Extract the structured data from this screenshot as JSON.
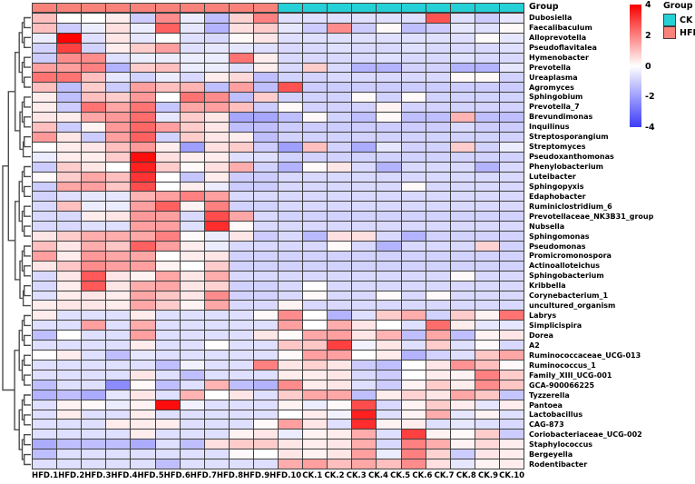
{
  "chart_data": {
    "type": "heatmap",
    "columns": [
      "HFD.1",
      "HFD.2",
      "HFD.3",
      "HFD.4",
      "HFD.5",
      "HFD.6",
      "HFD.7",
      "HFD.8",
      "HFD.9",
      "HFD.10",
      "CK.1",
      "CK.2",
      "CK.3",
      "CK.4",
      "CK.5",
      "CK.6",
      "CK.7",
      "CK.8",
      "CK.9",
      "CK.10"
    ],
    "rows": [
      "Dubosiella",
      "Faecalibaculum",
      "Alloprevotella",
      "Pseudoflavitalea",
      "Hymenobacter",
      "Prevotella",
      "Ureaplasma",
      "Agromyces",
      "Sphingobium",
      "Prevotella_7",
      "Brevundimonas",
      "Inquilinus",
      "Streptosporangium",
      "Streptomyces",
      "Pseudoxanthomonas",
      "Phenylobacterium",
      "Luteibacter",
      "Sphingopyxis",
      "Edaphobacter",
      "Ruminiclostridium_6",
      "Prevotellaceae_NK3B31_group",
      "Nubsella",
      "Sphingomonas",
      "Pseudomonas",
      "Promicromonospora",
      "Actinoalloteichus",
      "Sphingobacterium",
      "Kribbella",
      "Corynebacterium_1",
      "uncultured_organism",
      "Labrys",
      "Simplicispira",
      "Dorea",
      "A2",
      "Ruminococcaceae_UCG-013",
      "Ruminococcus_1",
      "Family_XIII_UCG-001",
      "GCA-900066225",
      "Tyzzerella",
      "Pantoea",
      "Lactobacillus",
      "CAG-873",
      "Coriobacteriaceae_UCG-002",
      "Staphylococcus",
      "Bergeyella",
      "Rodentibacter"
    ],
    "values": [
      [
        1.0,
        0.0,
        0.0,
        0.3,
        -0.8,
        1.8,
        -0.3,
        -1.0,
        0.7,
        2.0,
        -0.5,
        -0.5,
        -0.5,
        -0.5,
        -0.5,
        -0.5,
        2.7,
        -0.5,
        -0.8,
        -0.4
      ],
      [
        1.0,
        -0.8,
        -0.3,
        0.5,
        -0.3,
        2.5,
        -0.4,
        -1.2,
        0.5,
        0.8,
        -0.4,
        -0.8,
        1.8,
        -0.8,
        0.1,
        -1.0,
        -0.8,
        -0.4,
        -0.5,
        0.1
      ],
      [
        -0.3,
        4.0,
        -0.5,
        0.4,
        -0.4,
        0.0,
        -0.5,
        -0.6,
        0.1,
        0.4,
        -0.5,
        -0.5,
        -0.5,
        -0.5,
        -0.5,
        -0.5,
        -0.5,
        -0.5,
        0.1,
        -0.4
      ],
      [
        -0.7,
        3.0,
        -0.7,
        0.3,
        0.8,
        1.5,
        -0.5,
        -0.4,
        -0.4,
        -0.5,
        -0.6,
        -0.6,
        -0.5,
        -0.6,
        -0.6,
        -0.5,
        -0.6,
        -0.6,
        -0.6,
        -0.5
      ],
      [
        -0.8,
        1.8,
        1.8,
        -0.5,
        -0.3,
        -0.3,
        -0.3,
        -0.3,
        2.2,
        0.3,
        -0.6,
        -0.6,
        -0.6,
        -0.6,
        -0.5,
        -0.6,
        -0.6,
        -0.5,
        -0.6,
        -0.6
      ],
      [
        1.5,
        1.5,
        2.0,
        -1.2,
        0.8,
        1.0,
        -0.3,
        -0.3,
        -0.5,
        0.3,
        -0.6,
        0.8,
        -0.6,
        -1.2,
        -1.2,
        -0.7,
        -0.7,
        -1.2,
        -1.2,
        -0.4
      ],
      [
        2.2,
        2.2,
        1.0,
        -0.4,
        -0.7,
        -0.3,
        -0.6,
        0.3,
        0.6,
        -1.0,
        -0.7,
        -0.7,
        -0.6,
        -0.6,
        -0.6,
        -0.6,
        -0.6,
        0.1,
        0.1,
        -0.7
      ],
      [
        1.0,
        -1.0,
        0.8,
        -0.8,
        1.5,
        1.0,
        1.2,
        -1.0,
        1.5,
        -1.0,
        2.7,
        -0.8,
        -0.8,
        -0.8,
        -0.8,
        -0.8,
        -0.8,
        -0.8,
        -0.8,
        -0.8
      ],
      [
        0.3,
        -1.0,
        1.0,
        0.8,
        1.6,
        0.0,
        2.2,
        1.8,
        -1.0,
        0.8,
        -0.7,
        -0.7,
        -0.7,
        0.1,
        -0.7,
        0.1,
        -0.7,
        -0.7,
        -0.7,
        -0.7
      ],
      [
        0.3,
        -0.8,
        2.2,
        1.4,
        2.2,
        -0.9,
        1.4,
        1.5,
        1.0,
        -0.8,
        0.1,
        -0.7,
        -0.7,
        -0.7,
        0.2,
        -0.7,
        -0.7,
        -0.7,
        -0.7,
        -0.7
      ],
      [
        0.4,
        0.3,
        1.4,
        1.6,
        2.3,
        -0.4,
        0.8,
        0.4,
        -1.4,
        -1.4,
        -1.0,
        0.1,
        -0.7,
        -1.0,
        0.1,
        -1.0,
        -1.0,
        1.2,
        -1.0,
        -1.0
      ],
      [
        1.0,
        -0.8,
        0.2,
        1.6,
        2.4,
        1.5,
        0.8,
        0.4,
        -1.0,
        -1.0,
        -0.8,
        -0.8,
        -0.8,
        -0.8,
        -0.8,
        -0.8,
        -0.8,
        -0.6,
        -0.8,
        -0.8
      ],
      [
        1.6,
        0.4,
        -0.8,
        1.5,
        2.5,
        -0.7,
        0.8,
        0.4,
        0.3,
        -1.0,
        -0.7,
        -0.7,
        -0.7,
        -0.7,
        -0.7,
        -0.7,
        -0.7,
        -0.7,
        -0.7,
        -0.7
      ],
      [
        0.0,
        0.3,
        0.4,
        1.0,
        1.6,
        0.3,
        -1.5,
        0.5,
        0.8,
        -0.8,
        -1.5,
        1.0,
        -0.7,
        -1.3,
        -0.4,
        -0.7,
        -0.7,
        0.8,
        -0.7,
        -0.3
      ],
      [
        -0.3,
        0.3,
        0.3,
        0.8,
        3.8,
        0.5,
        0.3,
        0.3,
        -0.5,
        -0.5,
        -0.7,
        -0.7,
        -0.7,
        -0.7,
        -0.7,
        -0.7,
        -0.7,
        -0.7,
        -0.7,
        -0.7
      ],
      [
        -0.8,
        0.8,
        0.4,
        0.0,
        3.5,
        0.8,
        0.1,
        0.5,
        1.3,
        -0.7,
        -1.2,
        0.1,
        0.4,
        -0.6,
        -1.2,
        -0.6,
        -0.6,
        -0.6,
        -1.2,
        -0.6
      ],
      [
        0.1,
        0.8,
        1.4,
        1.0,
        3.2,
        0.0,
        -0.9,
        0.3,
        -0.8,
        -0.8,
        -0.6,
        -0.6,
        -0.6,
        -0.6,
        -0.6,
        -0.6,
        -0.6,
        -0.6,
        -0.6,
        -0.6
      ],
      [
        -0.8,
        1.4,
        1.5,
        0.9,
        2.8,
        0.0,
        0.3,
        -0.3,
        -0.8,
        -0.8,
        -0.6,
        -0.6,
        -0.6,
        -0.6,
        -0.6,
        0.1,
        -0.6,
        -0.6,
        -0.6,
        -0.6
      ],
      [
        -0.7,
        -0.5,
        -0.4,
        -0.4,
        1.2,
        1.5,
        2.0,
        1.5,
        -0.6,
        -0.6,
        -0.6,
        -0.6,
        -0.6,
        -0.6,
        -0.6,
        -0.6,
        -0.6,
        -0.6,
        -0.6,
        -0.6
      ],
      [
        -0.6,
        1.0,
        -0.3,
        -0.3,
        1.5,
        2.5,
        0.2,
        2.0,
        -0.7,
        -0.7,
        -0.6,
        -0.6,
        -0.6,
        -0.6,
        -0.6,
        -0.6,
        -0.6,
        -0.6,
        -0.6,
        -0.6
      ],
      [
        -0.6,
        -0.6,
        0.3,
        0.4,
        1.6,
        1.5,
        -0.6,
        2.8,
        1.4,
        -0.6,
        -0.7,
        -0.7,
        -0.7,
        -0.7,
        -0.7,
        -0.7,
        -0.7,
        -0.7,
        -0.7,
        -0.7
      ],
      [
        -0.6,
        -0.6,
        -0.5,
        -0.5,
        1.5,
        1.5,
        -0.5,
        3.3,
        0.1,
        -0.6,
        -0.6,
        -0.6,
        -0.6,
        -0.6,
        -0.6,
        -0.6,
        -0.6,
        -0.6,
        -0.6,
        -0.6
      ],
      [
        0.4,
        0.8,
        1.3,
        1.3,
        1.4,
        2.0,
        0.1,
        -0.3,
        0.4,
        -0.8,
        -0.6,
        -1.1,
        0.5,
        0.5,
        -0.6,
        -1.2,
        -0.7,
        -0.7,
        -0.7,
        -0.7
      ],
      [
        1.0,
        0.4,
        1.3,
        0.9,
        2.5,
        1.5,
        0.3,
        -0.3,
        -0.6,
        -0.6,
        -0.6,
        -0.6,
        0.1,
        -0.6,
        -1.2,
        -0.6,
        -0.6,
        -0.6,
        0.7,
        -0.7
      ],
      [
        1.5,
        0.3,
        1.6,
        1.4,
        1.4,
        0.0,
        0.3,
        0.4,
        -0.7,
        -0.7,
        -0.7,
        -0.7,
        -0.7,
        -0.7,
        -0.7,
        -0.7,
        -0.7,
        -0.7,
        -0.7,
        -0.7
      ],
      [
        0.4,
        0.9,
        1.8,
        1.5,
        1.5,
        0.2,
        0.0,
        0.8,
        -0.7,
        -0.7,
        -0.7,
        -0.7,
        -0.7,
        -0.7,
        -0.7,
        -0.7,
        -0.7,
        -0.7,
        -0.7,
        -0.7
      ],
      [
        -0.6,
        0.4,
        2.6,
        0.4,
        0.2,
        1.4,
        0.4,
        1.3,
        -0.6,
        -0.6,
        -0.6,
        -0.6,
        -0.6,
        -0.6,
        -0.6,
        -0.6,
        -0.6,
        0.1,
        -0.6,
        -0.6
      ],
      [
        -0.6,
        0.3,
        2.6,
        0.4,
        1.3,
        1.4,
        0.4,
        0.7,
        -0.7,
        -0.7,
        -0.6,
        0.0,
        -0.6,
        -0.6,
        -0.6,
        -0.6,
        -0.6,
        -0.6,
        -0.6,
        -0.6
      ],
      [
        -0.5,
        0.3,
        0.4,
        0.3,
        1.4,
        0.9,
        0.4,
        1.8,
        -0.7,
        -0.7,
        -0.6,
        0.1,
        -0.6,
        -0.6,
        0.1,
        -0.6,
        0.1,
        -0.6,
        -0.6,
        -0.6
      ],
      [
        0.3,
        0.4,
        0.4,
        0.3,
        1.4,
        0.8,
        0.2,
        1.4,
        -0.6,
        -0.6,
        0.2,
        -0.6,
        -0.6,
        -0.6,
        -0.6,
        -0.6,
        -0.6,
        -0.6,
        -0.6,
        -0.6
      ],
      [
        0.3,
        -0.5,
        -0.5,
        -0.5,
        0.3,
        -0.5,
        -0.5,
        -0.5,
        -0.5,
        0.1,
        1.8,
        0.0,
        -1.2,
        -0.5,
        0.8,
        1.3,
        -0.7,
        0.8,
        0.2,
        2.2
      ],
      [
        -0.5,
        -0.5,
        1.5,
        -0.5,
        1.3,
        -0.5,
        -0.5,
        -0.5,
        -0.5,
        -0.5,
        1.5,
        0.0,
        1.3,
        0.4,
        0.0,
        -0.5,
        2.3,
        0.3,
        -0.4,
        -0.4
      ],
      [
        -1.0,
        0.0,
        -0.5,
        -0.5,
        1.5,
        -0.5,
        -0.5,
        -0.5,
        -0.5,
        0.4,
        0.1,
        1.4,
        1.5,
        0.4,
        1.2,
        -1.0,
        1.4,
        -1.0,
        0.2,
        0.4
      ],
      [
        -0.5,
        -0.5,
        -0.5,
        -0.5,
        0.3,
        -0.5,
        -0.5,
        0.0,
        -0.5,
        -0.5,
        0.9,
        0.9,
        3.0,
        -0.2,
        0.4,
        -0.5,
        0.8,
        -0.5,
        0.1,
        -0.6
      ],
      [
        0.0,
        0.3,
        -0.5,
        -1.0,
        -0.4,
        -0.5,
        -0.5,
        -0.5,
        -0.5,
        -0.5,
        0.1,
        1.5,
        1.5,
        0.0,
        0.3,
        -1.2,
        -0.7,
        -0.5,
        0.9,
        1.4
      ],
      [
        -0.5,
        -0.5,
        -0.5,
        -0.5,
        -0.5,
        -1.0,
        -0.2,
        -0.5,
        -0.5,
        2.0,
        0.4,
        0.7,
        0.4,
        -0.8,
        -1.0,
        0.0,
        0.4,
        1.7,
        1.0,
        0.1
      ],
      [
        -0.5,
        -0.5,
        -0.5,
        -0.5,
        0.4,
        -0.5,
        -1.0,
        -0.5,
        -0.5,
        -0.5,
        0.3,
        0.3,
        0.4,
        -0.6,
        -0.8,
        0.0,
        0.3,
        0.2,
        2.0,
        0.8
      ],
      [
        -1.0,
        -0.5,
        -0.5,
        -1.8,
        0.1,
        -1.0,
        -0.5,
        1.2,
        -1.0,
        -1.2,
        1.8,
        0.3,
        0.4,
        -0.5,
        -0.8,
        0.2,
        0.8,
        0.3,
        1.8,
        0.9
      ],
      [
        -1.2,
        -1.0,
        -1.3,
        -0.4,
        0.4,
        -0.5,
        1.2,
        0.0,
        0.4,
        -0.5,
        0.8,
        1.4,
        1.4,
        -1.0,
        0.3,
        0.7,
        0.4,
        1.4,
        0.9,
        -0.9
      ],
      [
        -0.5,
        0.2,
        0.1,
        -0.3,
        0.2,
        3.8,
        -0.2,
        -0.5,
        -0.5,
        -0.5,
        0.2,
        -0.3,
        0.1,
        2.8,
        -0.6,
        0.2,
        0.8,
        0.3,
        -0.4,
        0.3
      ],
      [
        -0.5,
        0.3,
        -0.5,
        -0.5,
        0.3,
        -0.5,
        -0.5,
        -0.5,
        -0.5,
        -0.5,
        0.0,
        0.3,
        -0.2,
        3.5,
        -0.5,
        0.2,
        1.3,
        -0.4,
        0.2,
        -0.5
      ],
      [
        -0.5,
        -0.5,
        -0.5,
        0.3,
        0.3,
        0.3,
        -0.5,
        -0.5,
        -0.5,
        0.1,
        1.5,
        0.4,
        -0.5,
        3.3,
        0.2,
        0.3,
        -0.5,
        -0.4,
        -0.5,
        -0.6
      ],
      [
        -0.5,
        -0.5,
        -0.5,
        -0.5,
        0.3,
        -0.5,
        -0.5,
        -0.5,
        0.2,
        0.4,
        -0.3,
        0.2,
        0.3,
        1.3,
        -0.5,
        3.0,
        0.2,
        0.1,
        0.8,
        -0.8
      ],
      [
        -1.3,
        -1.0,
        -1.0,
        -1.0,
        -1.3,
        -0.5,
        -1.0,
        0.5,
        0.8,
        0.8,
        0.4,
        0.3,
        0.4,
        1.3,
        -0.6,
        2.0,
        1.3,
        0.2,
        0.6,
        0.3
      ],
      [
        -1.0,
        -0.5,
        -0.5,
        -0.5,
        -0.5,
        -0.5,
        -0.5,
        -0.5,
        0.1,
        0.0,
        0.4,
        0.2,
        0.4,
        1.5,
        -0.3,
        2.0,
        0.7,
        -0.8,
        0.4,
        0.3
      ],
      [
        -0.5,
        -0.5,
        -0.5,
        -0.5,
        -0.5,
        -1.0,
        -0.5,
        -0.5,
        -0.5,
        -0.5,
        1.3,
        1.5,
        1.0,
        1.4,
        1.0,
        1.8,
        0.5,
        -0.4,
        0.2,
        0.3
      ]
    ],
    "col_groups": [
      "HFD",
      "HFD",
      "HFD",
      "HFD",
      "HFD",
      "HFD",
      "HFD",
      "HFD",
      "HFD",
      "HFD",
      "CK",
      "CK",
      "CK",
      "CK",
      "CK",
      "CK",
      "CK",
      "CK",
      "CK",
      "CK"
    ],
    "annotation": {
      "label": "Group",
      "groups": [
        {
          "name": "CK",
          "color": "#25D1D6"
        },
        {
          "name": "HFD",
          "color": "#F9837B"
        }
      ]
    },
    "colorbar": {
      "min": -4,
      "max": 4,
      "ticks": [
        "4",
        "2",
        "0",
        "-2",
        "-4"
      ],
      "color_high": "#F80000",
      "color_mid": "#FFFFFF",
      "color_low": "#3C3CF8"
    },
    "legend": {
      "title": "Group",
      "entries": [
        {
          "label": "CK",
          "color": "#25D1D6"
        },
        {
          "label": "HFD",
          "color": "#F9837B"
        }
      ]
    },
    "layout": {
      "row_dendrogram": true,
      "col_dendrogram": false,
      "grid": true,
      "legend_position": "top-right"
    }
  }
}
